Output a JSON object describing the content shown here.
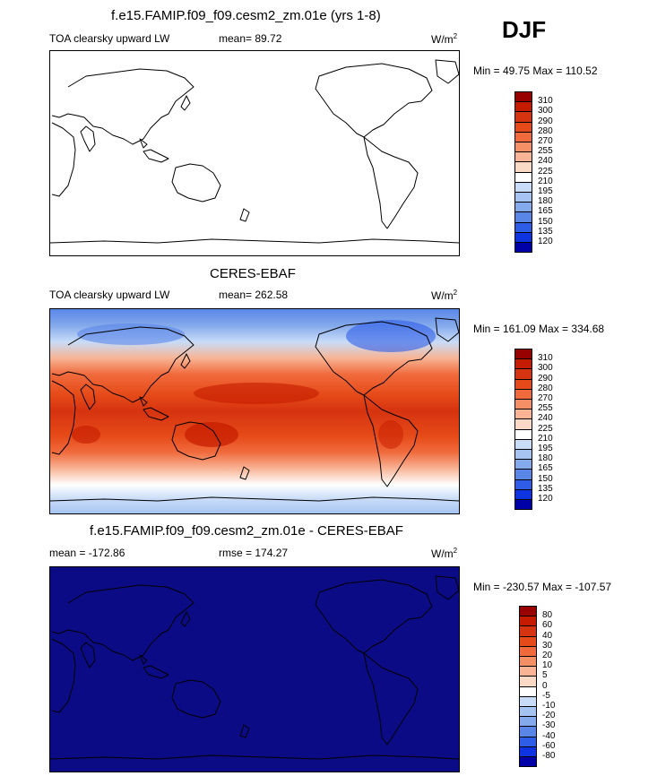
{
  "season": "DJF",
  "units_prefix": "W/m",
  "units_exp": "2",
  "panels": [
    {
      "title": "f.e15.FAMIP.f09_f09.cesm2_zm.01e (yrs 1-8)",
      "left_label": "TOA clearsky upward LW",
      "mean_text": "mean=  89.72",
      "minmax_text": "Min =  49.75 Max = 110.52",
      "fill": "#ffffff"
    },
    {
      "title": "CERES-EBAF",
      "left_label": "TOA clearsky upward LW",
      "mean_text": "mean= 262.58",
      "minmax_text": "Min = 161.09 Max = 334.68",
      "fill": "field"
    },
    {
      "title": "f.e15.FAMIP.f09_f09.cesm2_zm.01e - CERES-EBAF",
      "left_label": "mean = -172.86",
      "mean_text": "rmse = 174.27",
      "minmax_text": "Min = -230.57 Max = -107.57",
      "fill": "#0b0b85"
    }
  ],
  "colorbar_levels": [
    "310",
    "300",
    "290",
    "280",
    "270",
    "255",
    "240",
    "225",
    "210",
    "195",
    "180",
    "165",
    "150",
    "135",
    "120"
  ],
  "diff_levels": [
    "80",
    "60",
    "40",
    "30",
    "20",
    "10",
    "5",
    "0",
    "-5",
    "-10",
    "-20",
    "-30",
    "-40",
    "-60",
    "-80"
  ],
  "colorbar_colors": [
    "#990000",
    "#c51b00",
    "#d63310",
    "#e64a18",
    "#f06a3c",
    "#f58f66",
    "#f8b495",
    "#fbd9c4",
    "#ffffff",
    "#c8dcf8",
    "#a6c4f2",
    "#84a9ec",
    "#5a86e8",
    "#2e5ee8",
    "#0d34e0",
    "#0000a8"
  ]
}
